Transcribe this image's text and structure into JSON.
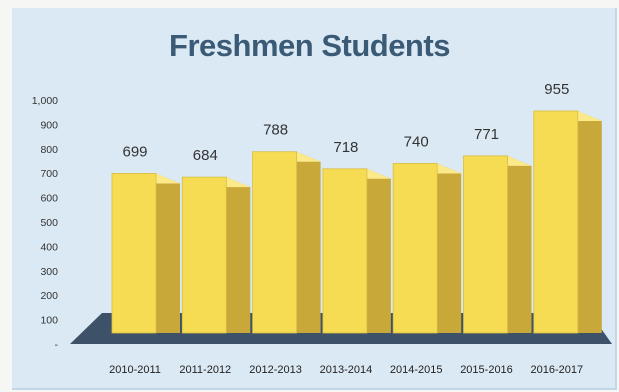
{
  "chart_data": {
    "type": "bar",
    "title": "Freshmen Students",
    "categories": [
      "2010-2011",
      "2011-2012",
      "2012-2013",
      "2013-2014",
      "2014-2015",
      "2015-2016",
      "2016-2017"
    ],
    "values": [
      699,
      684,
      788,
      718,
      740,
      771,
      955
    ],
    "data_labels": [
      "699",
      "684",
      "788",
      "718",
      "740",
      "771",
      "955"
    ],
    "y_ticks": [
      "-",
      "100",
      "200",
      "300",
      "400",
      "500",
      "600",
      "700",
      "800",
      "900",
      "1,000"
    ],
    "ylim": [
      0,
      1000
    ],
    "xlabel": "",
    "ylabel": "",
    "grid": false,
    "legend": "none",
    "style": "3d-column",
    "colors": {
      "bar_front": "#f6dc52",
      "bar_side": "#c9a83a",
      "bar_top": "#fbe98a",
      "floor": "#3d5269",
      "panel": "#dbe9f4",
      "title": "#3a5a76"
    }
  }
}
